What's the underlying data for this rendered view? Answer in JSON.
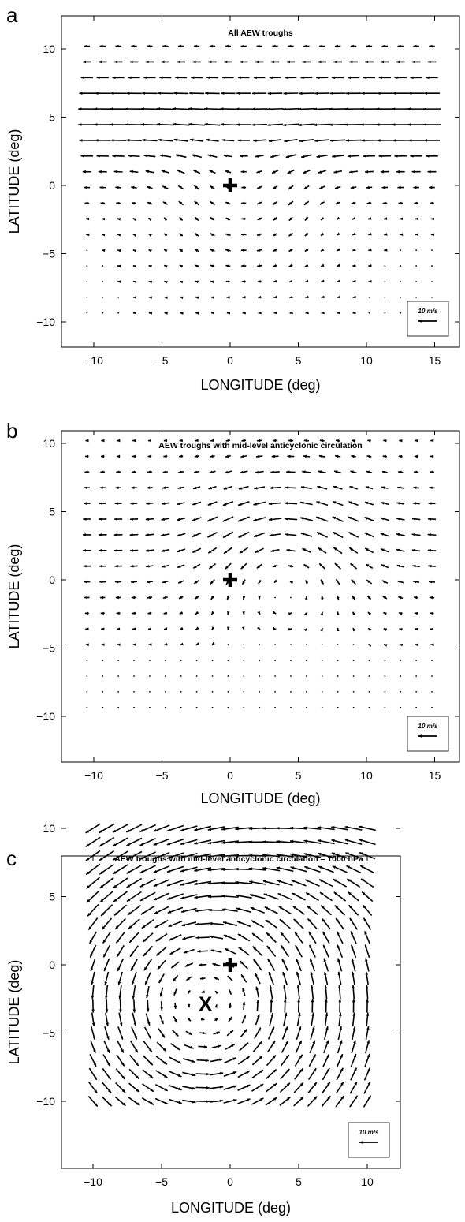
{
  "figure": {
    "panels": [
      {
        "letter": "a",
        "title": "All AEW troughs",
        "xlabel": "LONGITUDE (deg)",
        "ylabel": "LATITUDE (deg)",
        "reference_label": "10 m/s"
      },
      {
        "letter": "b",
        "title": "AEW troughs with mid-level anticyclonic circulation",
        "xlabel": "LONGITUDE (deg)",
        "ylabel": "LATITUDE (deg)",
        "reference_label": "10 m/s"
      },
      {
        "letter": "c",
        "title": "AEW troughs with mid-level anticyclonic circulation – 1000 hPa",
        "xlabel": "LONGITUDE (deg)",
        "ylabel": "LATITUDE (deg)",
        "reference_label": "10 m/s"
      }
    ]
  },
  "chart_data": [
    {
      "type": "quiver",
      "title": "All AEW troughs",
      "xlabel": "LONGITUDE (deg)",
      "ylabel": "LATITUDE (deg)",
      "xlim": [
        -12,
        17
      ],
      "ylim": [
        -12,
        12
      ],
      "xticks": [
        "-10",
        "-5",
        "0",
        "5",
        "10",
        "15"
      ],
      "yticks": [
        "10",
        "5",
        "0",
        "-5",
        "-10"
      ],
      "grid_spacing_deg": 1.15,
      "x_range": [
        -10.5,
        15.5
      ],
      "y_range": [
        -10.2,
        10.2
      ],
      "markers": [
        {
          "symbol": "+",
          "lon": 0,
          "lat": 0
        }
      ],
      "reference_vector": {
        "label": "10 m/s",
        "speed": 10,
        "direction": "westward"
      },
      "flow": "easterly flow strongest near 4-6N; weak winds south of center turning southward east of the trough"
    },
    {
      "type": "quiver",
      "title": "AEW troughs with mid-level anticyclonic circulation",
      "xlabel": "LONGITUDE (deg)",
      "ylabel": "LATITUDE (deg)",
      "xlim": [
        -12,
        17
      ],
      "ylim": [
        -12,
        12
      ],
      "xticks": [
        "-10",
        "-5",
        "0",
        "5",
        "10",
        "15"
      ],
      "yticks": [
        "10",
        "5",
        "0",
        "-5",
        "-10"
      ],
      "grid_spacing_deg": 1.15,
      "x_range": [
        -10.5,
        15.5
      ],
      "y_range": [
        -10.2,
        10.2
      ],
      "markers": [
        {
          "symbol": "+",
          "lon": 0,
          "lat": 0
        }
      ],
      "reference_vector": {
        "label": "10 m/s",
        "speed": 10,
        "direction": "westward"
      },
      "flow": "anticyclonic circulation centered near 5E, 2N; northwesterly flow north-east of trough, easterly to the south"
    },
    {
      "type": "quiver",
      "title": "AEW troughs with mid-level anticyclonic circulation – 1000 hPa",
      "xlabel": "LONGITUDE (deg)",
      "ylabel": "LATITUDE (deg)",
      "xlim": [
        -12,
        12
      ],
      "ylim": [
        -12,
        11
      ],
      "xticks": [
        "-10",
        "-5",
        "0",
        "5",
        "10"
      ],
      "yticks": [
        "10",
        "5",
        "0",
        "-5",
        "-10"
      ],
      "grid_spacing_deg": 1.0,
      "x_range": [
        -10,
        10.5
      ],
      "y_range": [
        -10,
        10
      ],
      "markers": [
        {
          "symbol": "+",
          "lon": 0,
          "lat": 0
        },
        {
          "symbol": "X",
          "lon": -1.8,
          "lat": -2.8
        }
      ],
      "reference_vector": {
        "label": "10 m/s",
        "speed": 10,
        "direction": "westward"
      },
      "flow": "cyclonic circulation centered near 1.8W, 2.8S; strong northeasterlies in the north, southerlies in the south"
    }
  ]
}
